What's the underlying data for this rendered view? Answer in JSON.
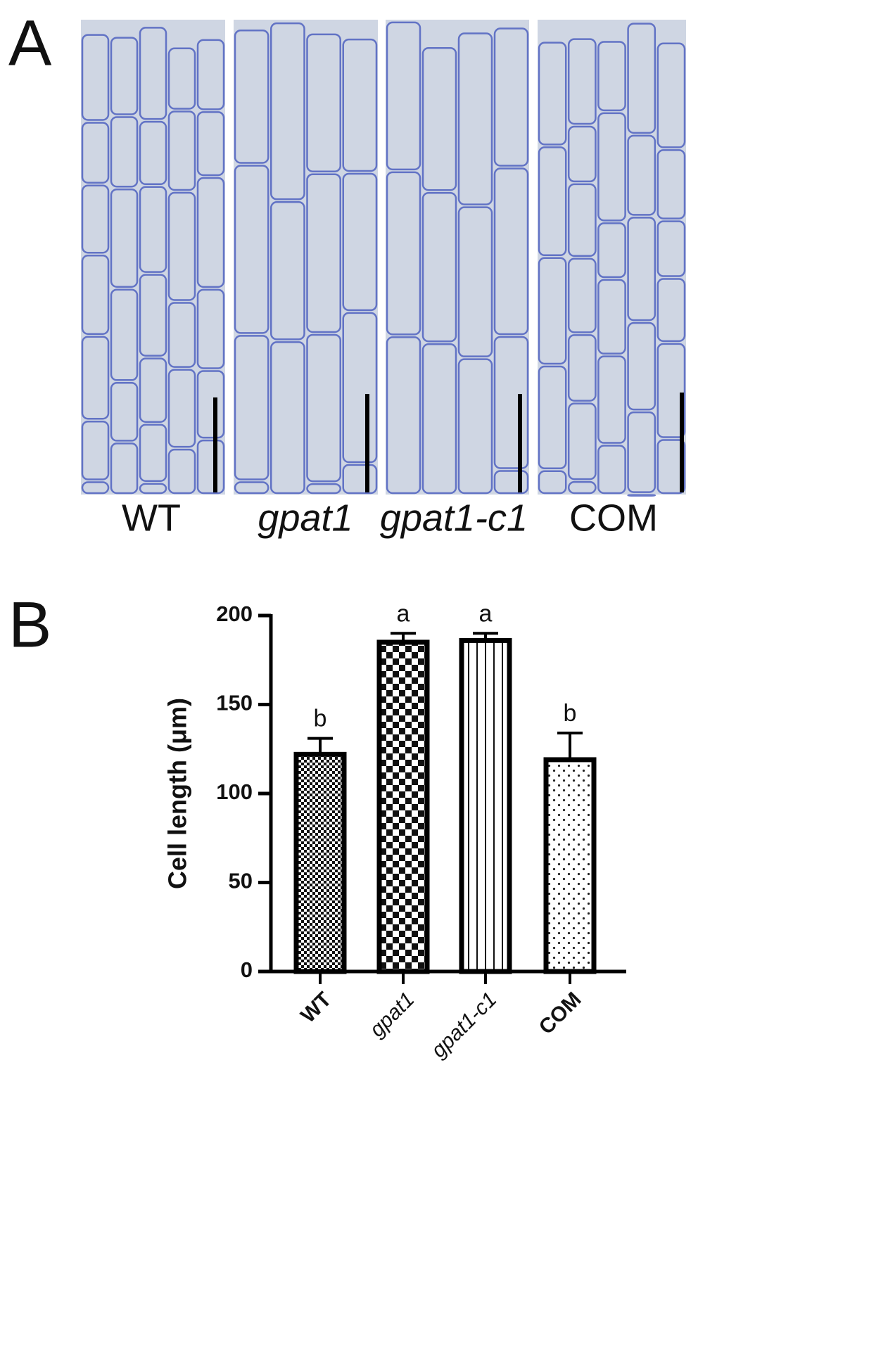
{
  "panel_a": {
    "label": "A",
    "captions": [
      "WT",
      "gpat1",
      "gpat1-c1",
      "COM"
    ],
    "italic": [
      false,
      true,
      true,
      false
    ]
  },
  "panel_b": {
    "label": "B"
  },
  "chart_data": {
    "type": "bar",
    "y_label": "Cell length (μm)",
    "categories": [
      "WT",
      "gpat1",
      "gpat1-c1",
      "COM"
    ],
    "category_italic": [
      false,
      true,
      true,
      false
    ],
    "values": [
      122,
      185,
      186,
      119
    ],
    "errors": [
      9,
      5,
      4,
      15
    ],
    "annotations": [
      "b",
      "a",
      "a",
      "b"
    ],
    "color": "#000000",
    "ylim": [
      0,
      200
    ],
    "yticks": [
      0,
      50,
      100,
      150,
      200
    ],
    "grid": false
  }
}
